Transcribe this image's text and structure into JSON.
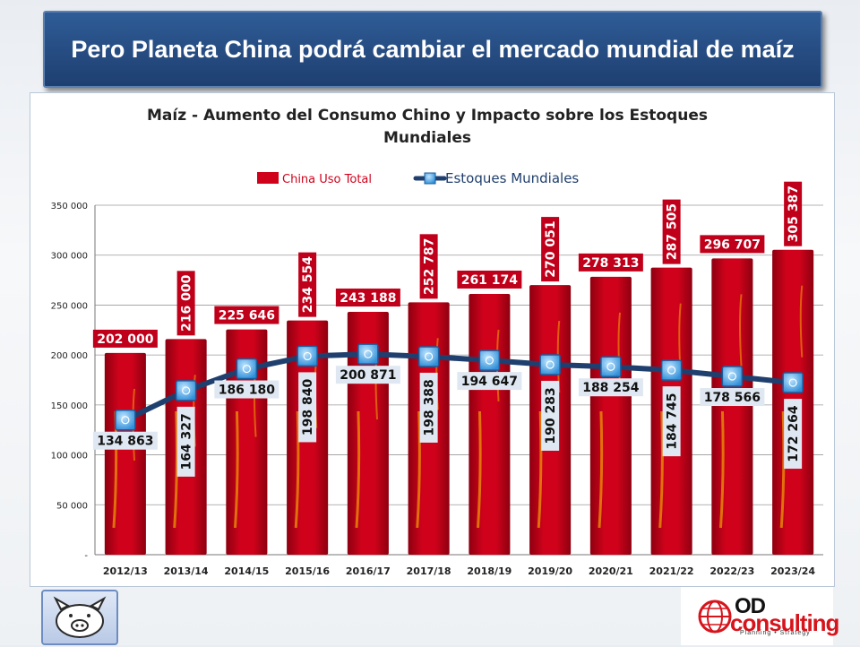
{
  "slide": {
    "title": "Pero Planeta China podrá cambiar el mercado mundial de maíz"
  },
  "logos": {
    "right_mark": "OD",
    "right_name": "consulting",
    "right_tagline": "Planning • Strategy"
  },
  "colors": {
    "bar": "#d0021b",
    "bar_dark": "#8e0010",
    "line": "#1f3f6e",
    "marker": "#2f8fd8",
    "bar_label_bg": "#c0001a",
    "line_label_bg": "#dfe8f2"
  },
  "chart_data": {
    "type": "bar",
    "title": "Maíz - Aumento del Consumo Chino y Impacto sobre los Estoques Mundiales",
    "title_lines": [
      "Maíz - Aumento del Consumo Chino y Impacto sobre los Estoques",
      "Mundiales"
    ],
    "categories": [
      "2012/13",
      "2013/14",
      "2014/15",
      "2015/16",
      "2016/17",
      "2017/18",
      "2018/19",
      "2019/20",
      "2020/21",
      "2021/22",
      "2022/23",
      "2023/24"
    ],
    "series": [
      {
        "name": "China Uso Total",
        "type": "bar",
        "values": [
          202000,
          216000,
          225646,
          234554,
          243188,
          252787,
          261174,
          270051,
          278313,
          287505,
          296707,
          305387
        ],
        "labels": [
          "202 000",
          "216 000",
          "225 646",
          "234 554",
          "243 188",
          "252 787",
          "261 174",
          "270 051",
          "278 313",
          "287 505",
          "296 707",
          "305 387"
        ],
        "label_rotated": [
          false,
          true,
          false,
          true,
          false,
          true,
          false,
          true,
          false,
          true,
          false,
          true
        ]
      },
      {
        "name": "Estoques Mundiales",
        "type": "line",
        "values": [
          134863,
          164327,
          186180,
          198840,
          200871,
          198388,
          194647,
          190283,
          188254,
          184745,
          178566,
          172264
        ],
        "labels": [
          "134 863",
          "164 327",
          "186 180",
          "198 840",
          "200 871",
          "198 388",
          "194 647",
          "190 283",
          "188 254",
          "184 745",
          "178 566",
          "172 264"
        ],
        "label_rotated": [
          false,
          true,
          false,
          true,
          false,
          true,
          false,
          true,
          false,
          true,
          false,
          true
        ]
      }
    ],
    "ylim": [
      0,
      350000
    ],
    "yticks": [
      0,
      50000,
      100000,
      150000,
      200000,
      250000,
      300000,
      350000
    ],
    "ytick_labels": [
      "-",
      "50 000",
      "100 000",
      "150 000",
      "200 000",
      "250 000",
      "300 000",
      "350 000"
    ],
    "grid": true,
    "legend_position": "top-center"
  }
}
